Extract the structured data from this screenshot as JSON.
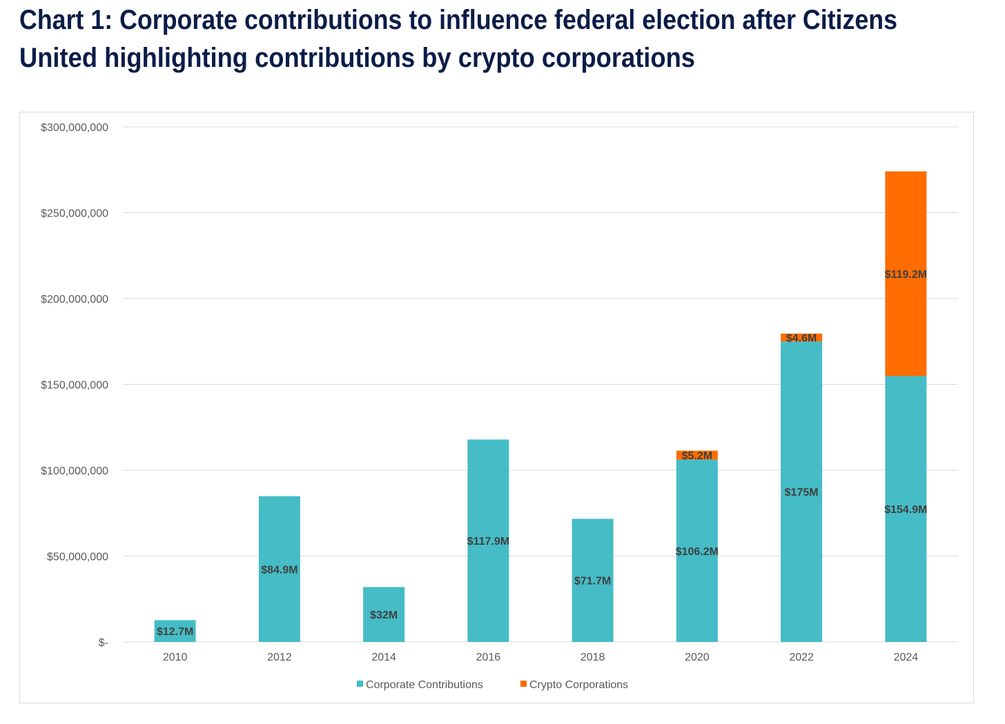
{
  "title_lines": [
    "Chart 1: Corporate contributions to influence federal election after Citizens",
    "United highlighting contributions by crypto corporations"
  ],
  "chart_data": {
    "type": "bar",
    "stacked": true,
    "title": "Chart 1: Corporate contributions to influence federal election after Citizens United highlighting contributions by crypto corporations",
    "xlabel": "",
    "ylabel": "",
    "ylim": [
      0,
      300000000
    ],
    "yticks": [
      0,
      50000000,
      100000000,
      150000000,
      200000000,
      250000000,
      300000000
    ],
    "ytick_labels": [
      "$-",
      "$50,000,000",
      "$100,000,000",
      "$150,000,000",
      "$200,000,000",
      "$250,000,000",
      "$300,000,000"
    ],
    "grid": true,
    "legend_position": "bottom",
    "categories": [
      "2010",
      "2012",
      "2014",
      "2016",
      "2018",
      "2020",
      "2022",
      "2024"
    ],
    "series": [
      {
        "name": "Corporate Contributions",
        "color": "#45bcc6",
        "values": [
          12700000,
          84900000,
          32000000,
          117900000,
          71700000,
          106200000,
          175000000,
          154900000
        ],
        "labels": [
          "$12.7M",
          "$84.9M",
          "$32M",
          "$117.9M",
          "$71.7M",
          "$106.2M",
          "$175M",
          "$154.9M"
        ]
      },
      {
        "name": "Crypto Corporations",
        "color": "#ff6d00",
        "values": [
          0,
          0,
          0,
          0,
          0,
          5200000,
          4600000,
          119200000
        ],
        "labels": [
          "",
          "",
          "",
          "",
          "",
          "$5.2M",
          "$4.6M",
          "$119.2M"
        ]
      }
    ]
  }
}
